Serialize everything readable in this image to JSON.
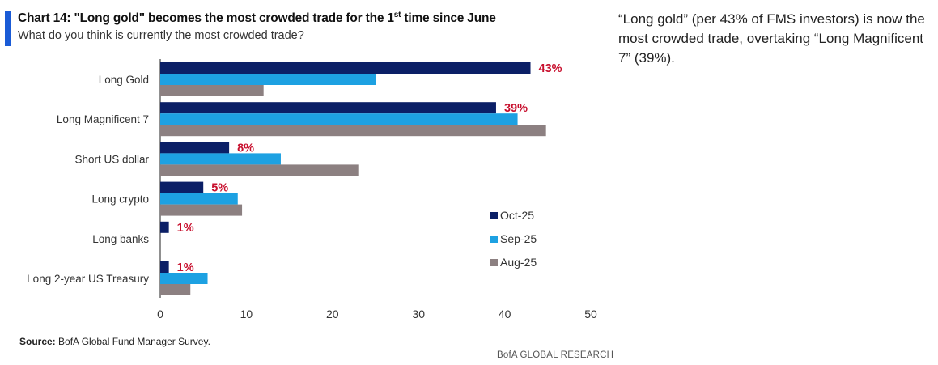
{
  "header": {
    "title_prefix": "Chart 14: \"Long gold\" becomes the most crowded trade for the 1",
    "title_sup": "st",
    "title_suffix": " time since June",
    "subtitle": "What do you think is currently the most crowded trade?"
  },
  "commentary": "“Long gold” (per 43% of FMS investors) is now the most crowded trade, overtaking “Long Magnificent 7” (39%).",
  "source_label": "Source:",
  "source_text": " BofA Global Fund Manager Survey.",
  "footer": "BofA GLOBAL RESEARCH",
  "colors": {
    "oct": "#0b1f66",
    "sep": "#1da1e2",
    "aug": "#8c8081",
    "label": "#c8102e",
    "accent": "#1a5bd6"
  },
  "chart_data": {
    "type": "bar",
    "orientation": "horizontal",
    "categories": [
      "Long Gold",
      "Long Magnificent 7",
      "Short US dollar",
      "Long crypto",
      "Long banks",
      "Long 2-year US Treasury"
    ],
    "series": [
      {
        "name": "Oct-25",
        "values": [
          43,
          39,
          8,
          5,
          1,
          1
        ]
      },
      {
        "name": "Sep-25",
        "values": [
          25,
          41.5,
          14,
          9,
          0,
          5.5
        ]
      },
      {
        "name": "Aug-25",
        "values": [
          12,
          44.8,
          23,
          9.5,
          0,
          3.5
        ]
      }
    ],
    "data_labels": [
      "43%",
      "39%",
      "8%",
      "5%",
      "1%",
      "1%"
    ],
    "xlim": [
      0,
      50
    ],
    "xticks": [
      0,
      10,
      20,
      30,
      40,
      50
    ],
    "legend_position": "right",
    "grid": false
  }
}
